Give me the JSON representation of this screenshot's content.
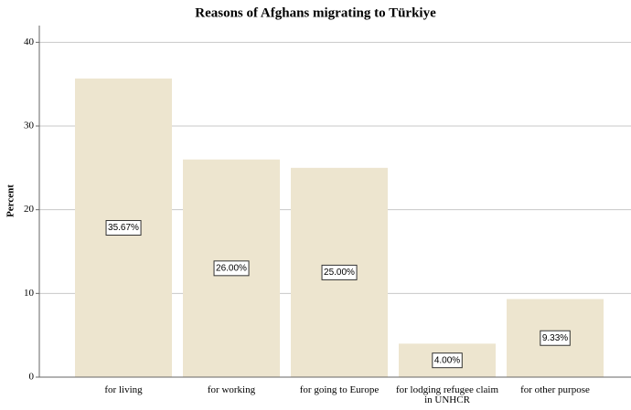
{
  "chart_data": {
    "type": "bar",
    "title": "Reasons of Afghans migrating to Türkiye",
    "y_label": "Percent",
    "categories": [
      "for living",
      "for working",
      "for going to Europe",
      "for lodging refugee claim in UNHCR",
      "for other purpose"
    ],
    "values": [
      35.67,
      26,
      25,
      4,
      9.33
    ],
    "value_labels": [
      "35.67%",
      "26.00%",
      "25.00%",
      "4.00%",
      "9.33%"
    ],
    "color": "#ede5cf",
    "ylim": [
      0,
      42
    ],
    "yticks": [
      0,
      10,
      20,
      30,
      40
    ],
    "grid": true
  }
}
